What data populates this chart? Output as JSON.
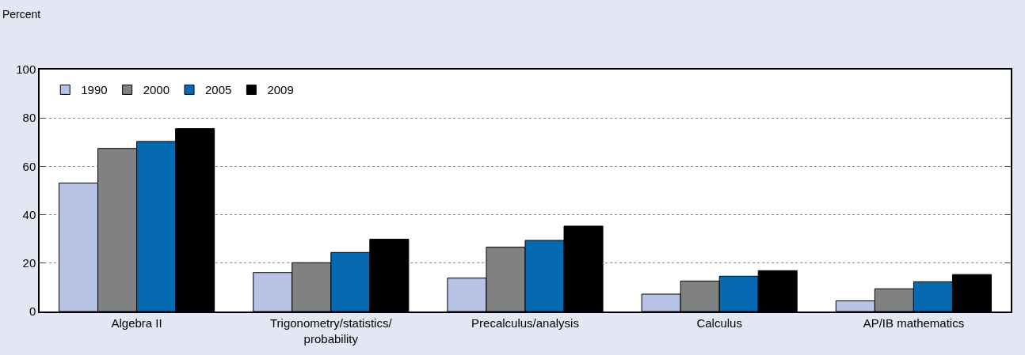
{
  "chart_data": {
    "type": "bar",
    "ylabel": "Percent",
    "categories": [
      "Algebra II",
      "Trigonometry/statistics/\nprobability",
      "Precalculus/analysis",
      "Calculus",
      "AP/IB mathematics"
    ],
    "series": [
      {
        "name": "1990",
        "color": "#b6c3e5",
        "values": [
          53.1,
          16.1,
          13.8,
          7.2,
          4.4
        ]
      },
      {
        "name": "2000",
        "color": "#808183",
        "values": [
          67.4,
          20.2,
          26.6,
          12.6,
          9.4
        ]
      },
      {
        "name": "2005",
        "color": "#066ab3",
        "values": [
          70.3,
          24.4,
          29.4,
          14.6,
          12.3
        ]
      },
      {
        "name": "2009",
        "color": "#000000",
        "values": [
          75.6,
          29.9,
          35.3,
          16.9,
          15.3
        ]
      }
    ],
    "ylim": [
      0,
      100
    ],
    "yticks": [
      0,
      20,
      40,
      60,
      80,
      100
    ],
    "grid": "y",
    "legend": "top left"
  }
}
